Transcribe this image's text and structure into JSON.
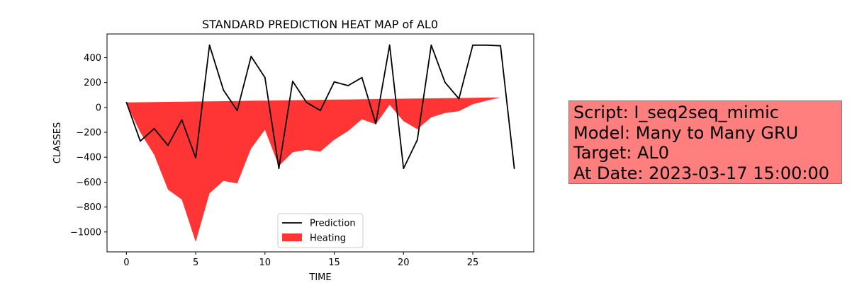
{
  "chart_data": {
    "type": "area",
    "title": "STANDARD PREDICTION HEAT MAP of AL0",
    "xlabel": "TIME",
    "ylabel": "CLASSES",
    "xlim": [
      -1.4,
      29.4
    ],
    "ylim": [
      -1160,
      590
    ],
    "xticks": [
      0,
      5,
      10,
      15,
      20,
      25
    ],
    "yticks": [
      400,
      200,
      0,
      -200,
      -400,
      -600,
      -800,
      -1000
    ],
    "ytick_labels": [
      "400",
      "200",
      "0",
      "−200",
      "−400",
      "−600",
      "−800",
      "−1000"
    ],
    "grid": false,
    "legend_position": "lower-center",
    "x": [
      0,
      1,
      2,
      3,
      4,
      5,
      6,
      7,
      8,
      9,
      10,
      11,
      12,
      13,
      14,
      15,
      16,
      17,
      18,
      19,
      20,
      21,
      22,
      23,
      24,
      25,
      26,
      27,
      28
    ],
    "series": [
      {
        "name": "Prediction",
        "type": "line",
        "color": "#000000",
        "values": [
          40,
          -270,
          -170,
          -305,
          -100,
          -405,
          500,
          140,
          -25,
          410,
          240,
          -490,
          210,
          40,
          -25,
          205,
          175,
          240,
          -130,
          500,
          -490,
          -260,
          500,
          200,
          70,
          500,
          500,
          495,
          -490
        ]
      },
      {
        "name": "Heating",
        "type": "area",
        "color": "#ff2a2a",
        "upper": [
          40,
          41.5,
          43,
          44.5,
          46,
          47.5,
          49,
          50.5,
          52,
          53.5,
          55,
          56.5,
          58,
          59.5,
          61,
          62.5,
          64,
          65.5,
          67,
          68.5,
          70,
          71.5,
          73,
          74.5,
          76,
          77.5,
          79,
          80.5,
          82
        ],
        "lower": [
          30,
          -200,
          -380,
          -660,
          -740,
          -1080,
          -690,
          -590,
          -610,
          -330,
          -180,
          -470,
          -360,
          -340,
          -355,
          -260,
          -190,
          -95,
          -135,
          20,
          -110,
          -175,
          -80,
          -45,
          -30,
          25,
          55,
          80,
          82
        ]
      }
    ]
  },
  "info_box": {
    "background": "#ff7f7f",
    "lines": [
      "Script: I_seq2seq_mimic",
      "Model: Many to Many GRU",
      "Target: AL0",
      "At Date: 2023-03-17 15:00:00"
    ]
  }
}
